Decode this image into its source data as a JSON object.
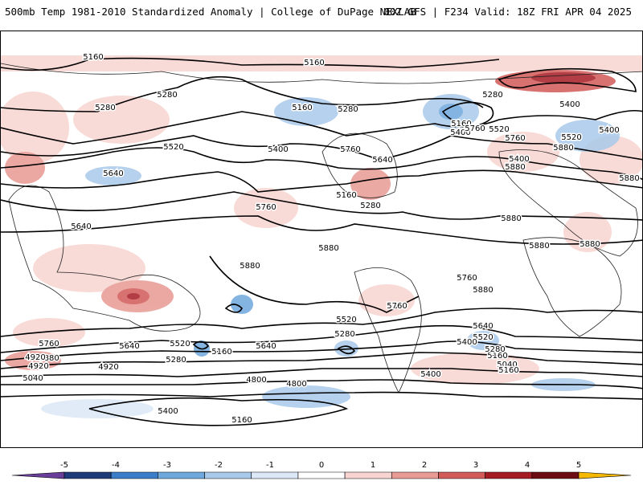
{
  "header": {
    "left_title": "500mb Temp 1981-2010 Standardized Anomaly | College of DuPage NEXLAB",
    "right_title": "00Z GFS | F234 Valid: 18Z FRI APR 04 2025"
  },
  "contour_labels": [
    "5160",
    "5160",
    "5280",
    "5160",
    "5280",
    "5280",
    "5160",
    "5280",
    "5400",
    "5520",
    "5400",
    "5520",
    "5760",
    "5640",
    "5400",
    "5640",
    "5760",
    "5880",
    "5640",
    "5760",
    "5160",
    "5280",
    "5400",
    "5400",
    "5520",
    "5760",
    "5880",
    "5880",
    "5880",
    "5880",
    "5880",
    "5760",
    "5880",
    "5880",
    "5760",
    "5520",
    "5280",
    "5640",
    "5520",
    "5280",
    "5160",
    "5640",
    "5760",
    "5880",
    "5640",
    "5400",
    "5160",
    "5520",
    "5280",
    "5040",
    "4920",
    "5400",
    "5160",
    "4920",
    "5040",
    "4920",
    "4800",
    "4800",
    "5400",
    "5160",
    "5880"
  ],
  "legend": {
    "ticks": [
      "-5",
      "-4",
      "-3",
      "-2",
      "-1",
      "0",
      "1",
      "2",
      "3",
      "4",
      "5"
    ],
    "colors": [
      "#6a3d9a",
      "#1f3a78",
      "#3a7dc9",
      "#6fa8dc",
      "#a9c9ea",
      "#dbe8f6",
      "#ffffff",
      "#f7d4d0",
      "#e89a94",
      "#d25a58",
      "#a51c24",
      "#6b0d12",
      "#f5b800"
    ]
  }
}
